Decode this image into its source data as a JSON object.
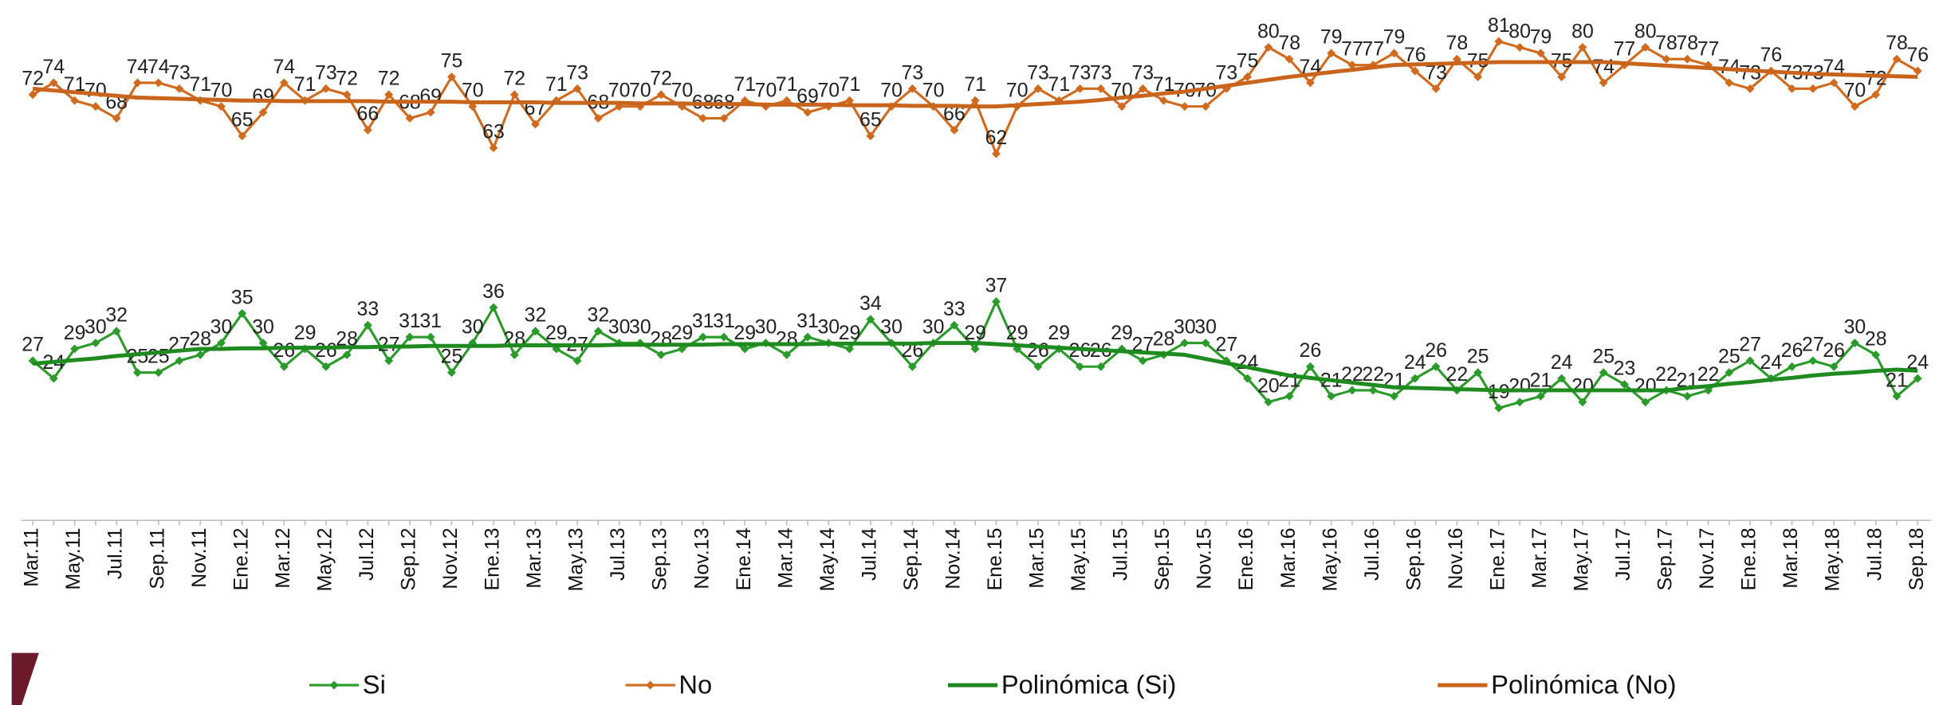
{
  "chart_data": {
    "type": "line",
    "categories": [
      "Mar.11",
      null,
      "May.11",
      null,
      "Jul.11",
      null,
      "Sep.11",
      null,
      "Nov.11",
      null,
      "Ene.12",
      null,
      "Mar.12",
      null,
      "May.12",
      null,
      "Jul.12",
      null,
      "Sep.12",
      null,
      "Nov.12",
      null,
      "Ene.13",
      null,
      "Mar.13",
      null,
      "May.13",
      null,
      "Jul.13",
      null,
      "Sep.13",
      null,
      "Nov.13",
      null,
      "Ene.14",
      null,
      "Mar.14",
      null,
      "May.14",
      null,
      "Jul.14",
      null,
      "Sep.14",
      null,
      "Nov.14",
      null,
      "Ene.15",
      null,
      "Mar.15",
      null,
      "May.15",
      null,
      "Jul.15",
      null,
      "Sep.15",
      null,
      "Nov.15",
      null,
      "Ene.16",
      null,
      "Mar.16",
      null,
      "May.16",
      null,
      "Jul.16",
      null,
      "Sep.16",
      null,
      "Nov.16",
      null,
      "Ene.17",
      null,
      "Mar.17",
      null,
      "May.17",
      null,
      "Jul.17",
      null,
      "Sep.17",
      null,
      "Nov.17",
      null,
      "Ene.18",
      null,
      "Mar.18",
      null,
      "May.18",
      null,
      "Jul.18",
      null,
      "Sep.18"
    ],
    "ylim": [
      0,
      88
    ],
    "series": [
      {
        "name": "Si",
        "color": "#2a9a2a",
        "markers": true,
        "data_labels": true,
        "values": [
          27,
          24,
          29,
          30,
          32,
          25,
          25,
          27,
          28,
          30,
          35,
          30,
          26,
          29,
          26,
          28,
          33,
          27,
          31,
          31,
          25,
          30,
          36,
          28,
          32,
          29,
          27,
          32,
          30,
          30,
          28,
          29,
          31,
          31,
          29,
          30,
          28,
          31,
          30,
          29,
          34,
          30,
          26,
          30,
          33,
          29,
          37,
          29,
          26,
          29,
          26,
          26,
          29,
          27,
          28,
          30,
          30,
          27,
          24,
          20,
          21,
          26,
          21,
          22,
          22,
          21,
          24,
          26,
          22,
          25,
          19,
          20,
          21,
          24,
          20,
          25,
          23,
          20,
          22,
          21,
          22,
          25,
          27,
          24,
          26,
          27,
          26,
          30,
          28,
          21,
          24
        ]
      },
      {
        "name": "No",
        "color": "#d06a1e",
        "markers": true,
        "data_labels": true,
        "values": [
          72,
          74,
          71,
          70,
          68,
          74,
          74,
          73,
          71,
          70,
          65,
          69,
          74,
          71,
          73,
          72,
          66,
          72,
          68,
          69,
          75,
          70,
          63,
          72,
          67,
          71,
          73,
          68,
          70,
          70,
          72,
          70,
          68,
          68,
          71,
          70,
          71,
          69,
          70,
          71,
          65,
          70,
          73,
          70,
          66,
          71,
          62,
          70,
          73,
          71,
          73,
          73,
          70,
          73,
          71,
          70,
          70,
          73,
          75,
          80,
          78,
          74,
          79,
          77,
          77,
          79,
          76,
          73,
          78,
          75,
          81,
          80,
          79,
          75,
          80,
          74,
          77,
          80,
          78,
          78,
          77,
          74,
          73,
          76,
          73,
          73,
          74,
          70,
          72,
          78,
          76
        ]
      },
      {
        "name": "Polinómica (Si)",
        "color": "#1f8a1f",
        "markers": false,
        "data_labels": false,
        "values": [
          26.5,
          26.8,
          27.1,
          27.4,
          27.8,
          28.1,
          28.4,
          28.7,
          29.0,
          29.0,
          29.1,
          29.1,
          29.2,
          29.2,
          29.2,
          29.3,
          29.3,
          29.4,
          29.4,
          29.5,
          29.5,
          29.5,
          29.5,
          29.6,
          29.6,
          29.6,
          29.6,
          29.6,
          29.7,
          29.7,
          29.7,
          29.7,
          29.7,
          29.8,
          29.8,
          29.8,
          29.8,
          29.8,
          29.9,
          29.9,
          29.9,
          29.9,
          29.9,
          30.0,
          30.0,
          30.0,
          29.8,
          29.6,
          29.4,
          29.2,
          29.0,
          28.8,
          28.6,
          28.4,
          28.2,
          28.0,
          27.3,
          26.6,
          25.9,
          25.2,
          24.5,
          24.1,
          23.7,
          23.3,
          22.9,
          22.5,
          22.4,
          22.3,
          22.2,
          22.1,
          22.0,
          22.0,
          22.0,
          22.0,
          22.0,
          22.0,
          22.0,
          22.0,
          22.0,
          22.4,
          22.7,
          23.1,
          23.4,
          23.8,
          24.1,
          24.5,
          24.8,
          25.0,
          25.3,
          25.5,
          25.3
        ]
      },
      {
        "name": "Polinómica (No)",
        "color": "#c8641c",
        "markers": false,
        "data_labels": false,
        "values": [
          73.0,
          72.7,
          72.4,
          72.1,
          71.8,
          71.5,
          71.4,
          71.3,
          71.2,
          71.1,
          71.0,
          71.0,
          70.9,
          70.9,
          70.9,
          70.9,
          70.9,
          70.8,
          70.8,
          70.8,
          70.8,
          70.7,
          70.7,
          70.7,
          70.7,
          70.6,
          70.6,
          70.6,
          70.6,
          70.5,
          70.5,
          70.5,
          70.4,
          70.4,
          70.4,
          70.3,
          70.3,
          70.3,
          70.3,
          70.2,
          70.2,
          70.2,
          70.1,
          70.1,
          70.1,
          70.0,
          70.0,
          70.2,
          70.4,
          70.6,
          70.8,
          71.1,
          71.5,
          71.8,
          72.2,
          72.5,
          73.0,
          73.5,
          74.0,
          74.5,
          75.0,
          75.4,
          75.8,
          76.2,
          76.6,
          77.0,
          77.1,
          77.2,
          77.3,
          77.4,
          77.5,
          77.5,
          77.5,
          77.5,
          77.5,
          77.5,
          77.3,
          77.1,
          76.9,
          76.7,
          76.5,
          76.3,
          76.1,
          75.9,
          75.7,
          75.5,
          75.4,
          75.3,
          75.2,
          75.1,
          75.0
        ]
      }
    ]
  }
}
